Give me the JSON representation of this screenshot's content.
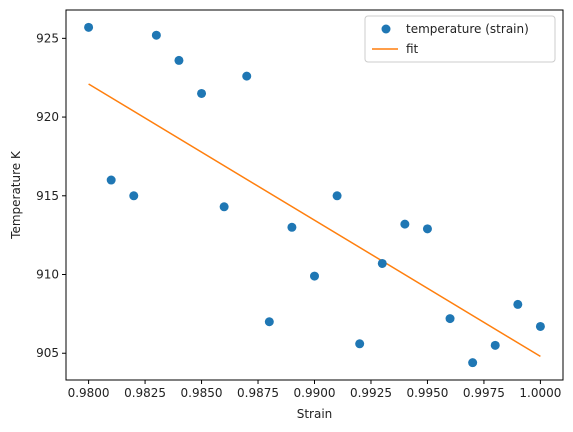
{
  "chart_data": {
    "type": "scatter",
    "title": "",
    "xlabel": "Strain",
    "ylabel": "Temperature K",
    "xlim": [
      0.979,
      1.001
    ],
    "ylim": [
      903.3,
      926.8
    ],
    "xticks": [
      0.98,
      0.9825,
      0.985,
      0.9875,
      0.99,
      0.9925,
      0.995,
      0.9975,
      1.0
    ],
    "xtick_labels": [
      "0.9800",
      "0.9825",
      "0.9850",
      "0.9875",
      "0.9900",
      "0.9925",
      "0.9950",
      "0.9975",
      "1.0000"
    ],
    "yticks": [
      905,
      910,
      915,
      920,
      925
    ],
    "ytick_labels": [
      "905",
      "910",
      "915",
      "920",
      "925"
    ],
    "grid": false,
    "legend_position": "top-right",
    "series": [
      {
        "name": "temperature (strain)",
        "kind": "scatter",
        "color": "#1f77b4",
        "x": [
          0.98,
          0.981,
          0.982,
          0.983,
          0.984,
          0.985,
          0.986,
          0.987,
          0.988,
          0.989,
          0.99,
          0.991,
          0.992,
          0.993,
          0.994,
          0.995,
          0.996,
          0.997,
          0.998,
          0.999,
          1.0
        ],
        "y": [
          925.7,
          916.0,
          915.0,
          925.2,
          923.6,
          921.5,
          914.3,
          922.6,
          907.0,
          913.0,
          909.9,
          915.0,
          905.6,
          910.7,
          913.2,
          912.9,
          907.2,
          904.4,
          905.5,
          908.1,
          906.7
        ]
      },
      {
        "name": "fit",
        "kind": "line",
        "color": "#ff7f0e",
        "x": [
          0.98,
          1.0
        ],
        "y": [
          922.1,
          904.8
        ]
      }
    ]
  }
}
